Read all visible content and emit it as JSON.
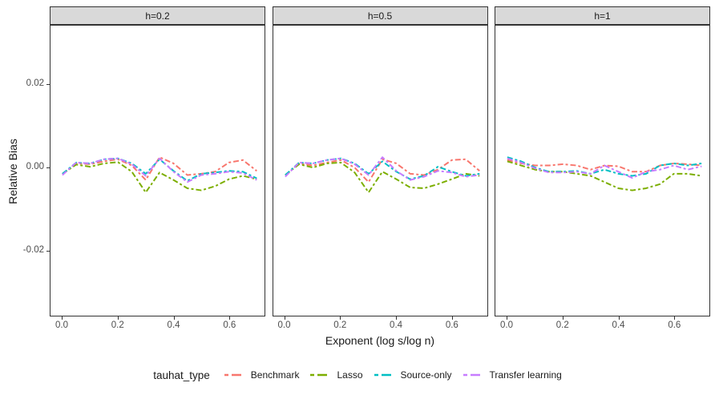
{
  "chart": {
    "y_axis": {
      "label": "Relative Bias",
      "tick_labels": [
        "0.02",
        "0.00",
        "-0.02"
      ],
      "tick_values": [
        0.02,
        0.0,
        -0.02
      ]
    },
    "x_axis": {
      "label": "Exponent (log s/log n)",
      "tick_labels": [
        "0.0",
        "0.2",
        "0.4",
        "0.6"
      ],
      "tick_values": [
        0.0,
        0.2,
        0.4,
        0.6
      ]
    },
    "legend": {
      "title": "tauhat_type",
      "entries": [
        {
          "label": "Benchmark",
          "color": "#F8766D"
        },
        {
          "label": "Lasso",
          "color": "#7CAE00"
        },
        {
          "label": "Source-only",
          "color": "#00BFC4"
        },
        {
          "label": "Transfer learning",
          "color": "#C77CFF"
        }
      ]
    }
  },
  "chart_data": {
    "type": "line",
    "title": "",
    "xlabel": "Exponent (log s/log n)",
    "ylabel": "Relative Bias",
    "grid": false,
    "linetype": "twodash",
    "xlim": [
      -0.043,
      0.728
    ],
    "ylim": [
      -0.0357,
      0.0342
    ],
    "x": [
      0.0,
      0.05,
      0.1,
      0.15,
      0.2,
      0.25,
      0.3,
      0.35,
      0.4,
      0.45,
      0.5,
      0.55,
      0.6,
      0.65,
      0.7
    ],
    "facets": [
      {
        "label": "h=0.2",
        "series": [
          {
            "name": "Benchmark",
            "color": "#F8766D",
            "values": [
              -0.0015,
              0.001,
              0.0008,
              0.0015,
              0.002,
              0.0005,
              -0.003,
              0.0025,
              0.001,
              -0.0018,
              -0.0015,
              -0.001,
              0.0012,
              0.0018,
              -0.0008
            ]
          },
          {
            "name": "Lasso",
            "color": "#7CAE00",
            "values": [
              -0.0015,
              0.0007,
              0.0002,
              0.001,
              0.0013,
              -0.001,
              -0.006,
              -0.0012,
              -0.003,
              -0.005,
              -0.0055,
              -0.0045,
              -0.0028,
              -0.002,
              -0.0028
            ]
          },
          {
            "name": "Source-only",
            "color": "#00BFC4",
            "values": [
              -0.0015,
              0.0012,
              0.001,
              0.002,
              0.0022,
              0.001,
              -0.0015,
              0.002,
              -0.0008,
              -0.0032,
              -0.0015,
              -0.0012,
              -0.0008,
              -0.001,
              -0.0026
            ]
          },
          {
            "name": "Transfer learning",
            "color": "#C77CFF",
            "values": [
              -0.0018,
              0.0012,
              0.001,
              0.002,
              0.0022,
              0.0008,
              -0.002,
              0.0022,
              -0.001,
              -0.0035,
              -0.0018,
              -0.0015,
              -0.001,
              -0.0013,
              -0.003
            ]
          }
        ]
      },
      {
        "label": "h=0.5",
        "series": [
          {
            "name": "Benchmark",
            "color": "#F8766D",
            "values": [
              -0.0018,
              0.001,
              0.0005,
              0.0012,
              0.0018,
              0.0,
              -0.0035,
              0.002,
              0.001,
              -0.0015,
              -0.0018,
              -0.0005,
              0.0018,
              0.002,
              -0.0008
            ]
          },
          {
            "name": "Lasso",
            "color": "#7CAE00",
            "values": [
              -0.0018,
              0.0008,
              0.0,
              0.001,
              0.0012,
              -0.0012,
              -0.006,
              -0.001,
              -0.0028,
              -0.0048,
              -0.005,
              -0.004,
              -0.0028,
              -0.0015,
              -0.002
            ]
          },
          {
            "name": "Source-only",
            "color": "#00BFC4",
            "values": [
              -0.0018,
              0.0012,
              0.001,
              0.0018,
              0.0022,
              0.001,
              -0.0015,
              0.0015,
              -0.001,
              -0.0028,
              -0.002,
              0.0002,
              -0.001,
              -0.002,
              -0.0015
            ]
          },
          {
            "name": "Transfer learning",
            "color": "#C77CFF",
            "values": [
              -0.0022,
              0.0012,
              0.001,
              0.0018,
              0.0022,
              0.0008,
              -0.0018,
              0.0025,
              -0.0008,
              -0.003,
              -0.0022,
              -0.0008,
              -0.0012,
              -0.0022,
              -0.0018
            ]
          }
        ]
      },
      {
        "label": "h=1",
        "series": [
          {
            "name": "Benchmark",
            "color": "#F8766D",
            "values": [
              0.0018,
              0.001,
              0.0005,
              0.0005,
              0.0008,
              0.0005,
              -0.0005,
              0.0005,
              0.0003,
              -0.001,
              -0.001,
              0.0005,
              0.001,
              0.0008,
              0.0005
            ]
          },
          {
            "name": "Lasso",
            "color": "#7CAE00",
            "values": [
              0.0015,
              0.0005,
              -0.0005,
              -0.001,
              -0.001,
              -0.0015,
              -0.002,
              -0.0035,
              -0.005,
              -0.0055,
              -0.005,
              -0.004,
              -0.0015,
              -0.0015,
              -0.002
            ]
          },
          {
            "name": "Source-only",
            "color": "#00BFC4",
            "values": [
              0.0025,
              0.0015,
              0.0,
              -0.001,
              -0.001,
              -0.0008,
              -0.0015,
              -0.0005,
              -0.0015,
              -0.002,
              -0.0015,
              0.0005,
              0.001,
              0.0005,
              0.001
            ]
          },
          {
            "name": "Transfer learning",
            "color": "#C77CFF",
            "values": [
              0.0022,
              0.0012,
              -0.0002,
              -0.0012,
              -0.0012,
              -0.001,
              -0.0015,
              0.0005,
              -0.001,
              -0.0025,
              -0.001,
              -0.0005,
              0.0005,
              -0.0005,
              0.0003
            ]
          }
        ]
      }
    ]
  }
}
